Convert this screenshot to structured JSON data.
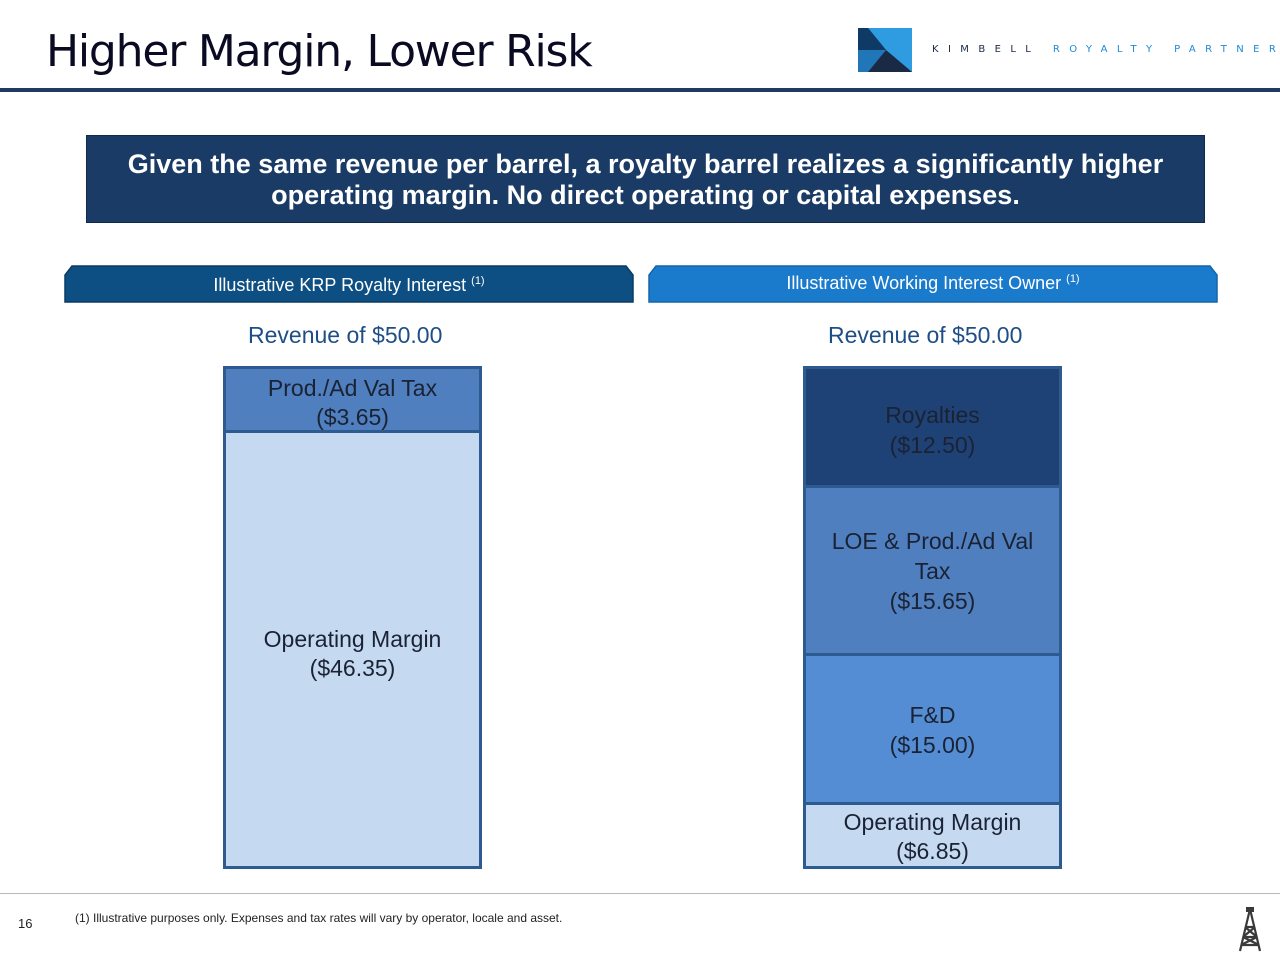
{
  "header": {
    "title": "Higher Margin, Lower Risk",
    "logo": {
      "kimbell": "KIMBELL",
      "royalty": "ROYALTY",
      "partners": "PARTNERS"
    }
  },
  "banner": {
    "line1": "Given the same revenue per barrel, a royalty barrel realizes a significantly higher",
    "line2": "operating margin.  No direct operating or capital expenses."
  },
  "left": {
    "tab_label": "Illustrative KRP Royalty Interest",
    "tab_sup": "(1)",
    "revenue": "Revenue of $50.00",
    "segments": [
      {
        "line1": "Prod./Ad Val Tax",
        "line2": "($3.65)"
      },
      {
        "line1": "Operating Margin",
        "line2": "($46.35)"
      }
    ]
  },
  "right": {
    "tab_label": "Illustrative Working Interest Owner",
    "tab_sup": "(1)",
    "revenue": "Revenue of $50.00",
    "segments": [
      {
        "line1": "Royalties",
        "line2": "($12.50)"
      },
      {
        "line1": "LOE & Prod./Ad Val",
        "line2": "Tax",
        "line3": "($15.65)"
      },
      {
        "line1": "F&D",
        "line2": "($15.00)"
      },
      {
        "line1": "Operating Margin",
        "line2": "($6.85)"
      }
    ]
  },
  "footer": {
    "page_number": "16",
    "footnote": "(1) Illustrative purposes only.  Expenses and tax rates will vary by operator, locale and asset."
  },
  "colors": {
    "navy": "#1a3b65",
    "dark_segment": "#1f4276",
    "mid_segment": "#4f7fbe",
    "bright_segment": "#548dd4",
    "light_segment": "#c5d9f1",
    "tab_left": "#0d4f83",
    "tab_right": "#1a7acc"
  }
}
